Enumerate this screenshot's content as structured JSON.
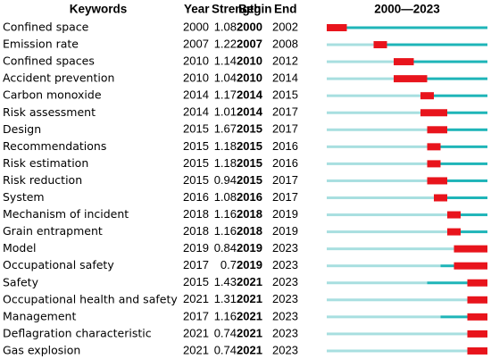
{
  "table": {
    "header": [
      "Keywords",
      "Year",
      "Strength",
      "Begin",
      "End",
      "2000—2023"
    ],
    "range": [
      2000,
      2023
    ],
    "rows": [
      [
        "Confined space",
        2000,
        1.08,
        2000,
        2002
      ],
      [
        "Emission rate",
        2007,
        1.22,
        2007,
        2008
      ],
      [
        "Confined spaces",
        2010,
        1.14,
        2010,
        2012
      ],
      [
        "Accident prevention",
        2010,
        1.04,
        2010,
        2014
      ],
      [
        "Carbon monoxide",
        2014,
        1.17,
        2014,
        2015
      ],
      [
        "Risk assessment",
        2014,
        1.01,
        2014,
        2017
      ],
      [
        "Design",
        2015,
        1.67,
        2015,
        2017
      ],
      [
        "Recommendations",
        2015,
        1.18,
        2015,
        2016
      ],
      [
        "Risk estimation",
        2015,
        1.18,
        2015,
        2016
      ],
      [
        "Risk reduction",
        2015,
        0.94,
        2015,
        2017
      ],
      [
        "System",
        2016,
        1.08,
        2016,
        2017
      ],
      [
        "Mechanism of incident",
        2018,
        1.16,
        2018,
        2019
      ],
      [
        "Grain entrapment",
        2018,
        1.16,
        2018,
        2019
      ],
      [
        "Model",
        2019,
        0.84,
        2019,
        2023
      ],
      [
        "Occupational safety",
        2017,
        0.7,
        2019,
        2023
      ],
      [
        "Safety",
        2015,
        1.43,
        2021,
        2023
      ],
      [
        "Occupational health and safety",
        2021,
        1.31,
        2021,
        2023
      ],
      [
        "Management",
        2017,
        1.16,
        2021,
        2023
      ],
      [
        "Deflagration characteristic",
        2021,
        0.74,
        2021,
        2023
      ],
      [
        "Gas explosion",
        2021,
        0.74,
        2021,
        2023
      ]
    ]
  }
}
